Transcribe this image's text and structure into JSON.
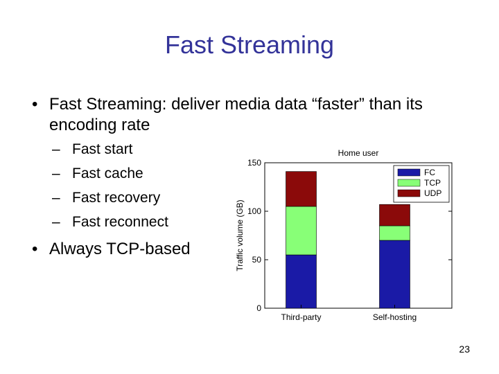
{
  "slide": {
    "title": "Fast Streaming",
    "bullet_mark": "•",
    "bullet1": "Fast Streaming: deliver media data “faster” than its encoding rate",
    "sub_dash": "–",
    "sub_items": [
      "Fast start",
      "Fast cache",
      "Fast recovery",
      "Fast reconnect"
    ],
    "bullet2": "Always TCP-based",
    "page_number": "23"
  },
  "colors": {
    "title": "#333399",
    "FC": "#1a1aa6",
    "TCP": "#88ff77",
    "UDP": "#8b0a0a"
  },
  "chart_data": {
    "type": "bar",
    "stacked": true,
    "title": "Home user",
    "xlabel": "",
    "ylabel": "Traffic volume (GB)",
    "ylim": [
      0,
      150
    ],
    "yticks": [
      0,
      50,
      100,
      150
    ],
    "categories": [
      "Third-party",
      "Self-hosting"
    ],
    "series": [
      {
        "name": "FC",
        "values": [
          55,
          70
        ]
      },
      {
        "name": "TCP",
        "values": [
          50,
          15
        ]
      },
      {
        "name": "UDP",
        "values": [
          36,
          22
        ]
      }
    ],
    "legend_position": "top-right",
    "grid": false
  }
}
